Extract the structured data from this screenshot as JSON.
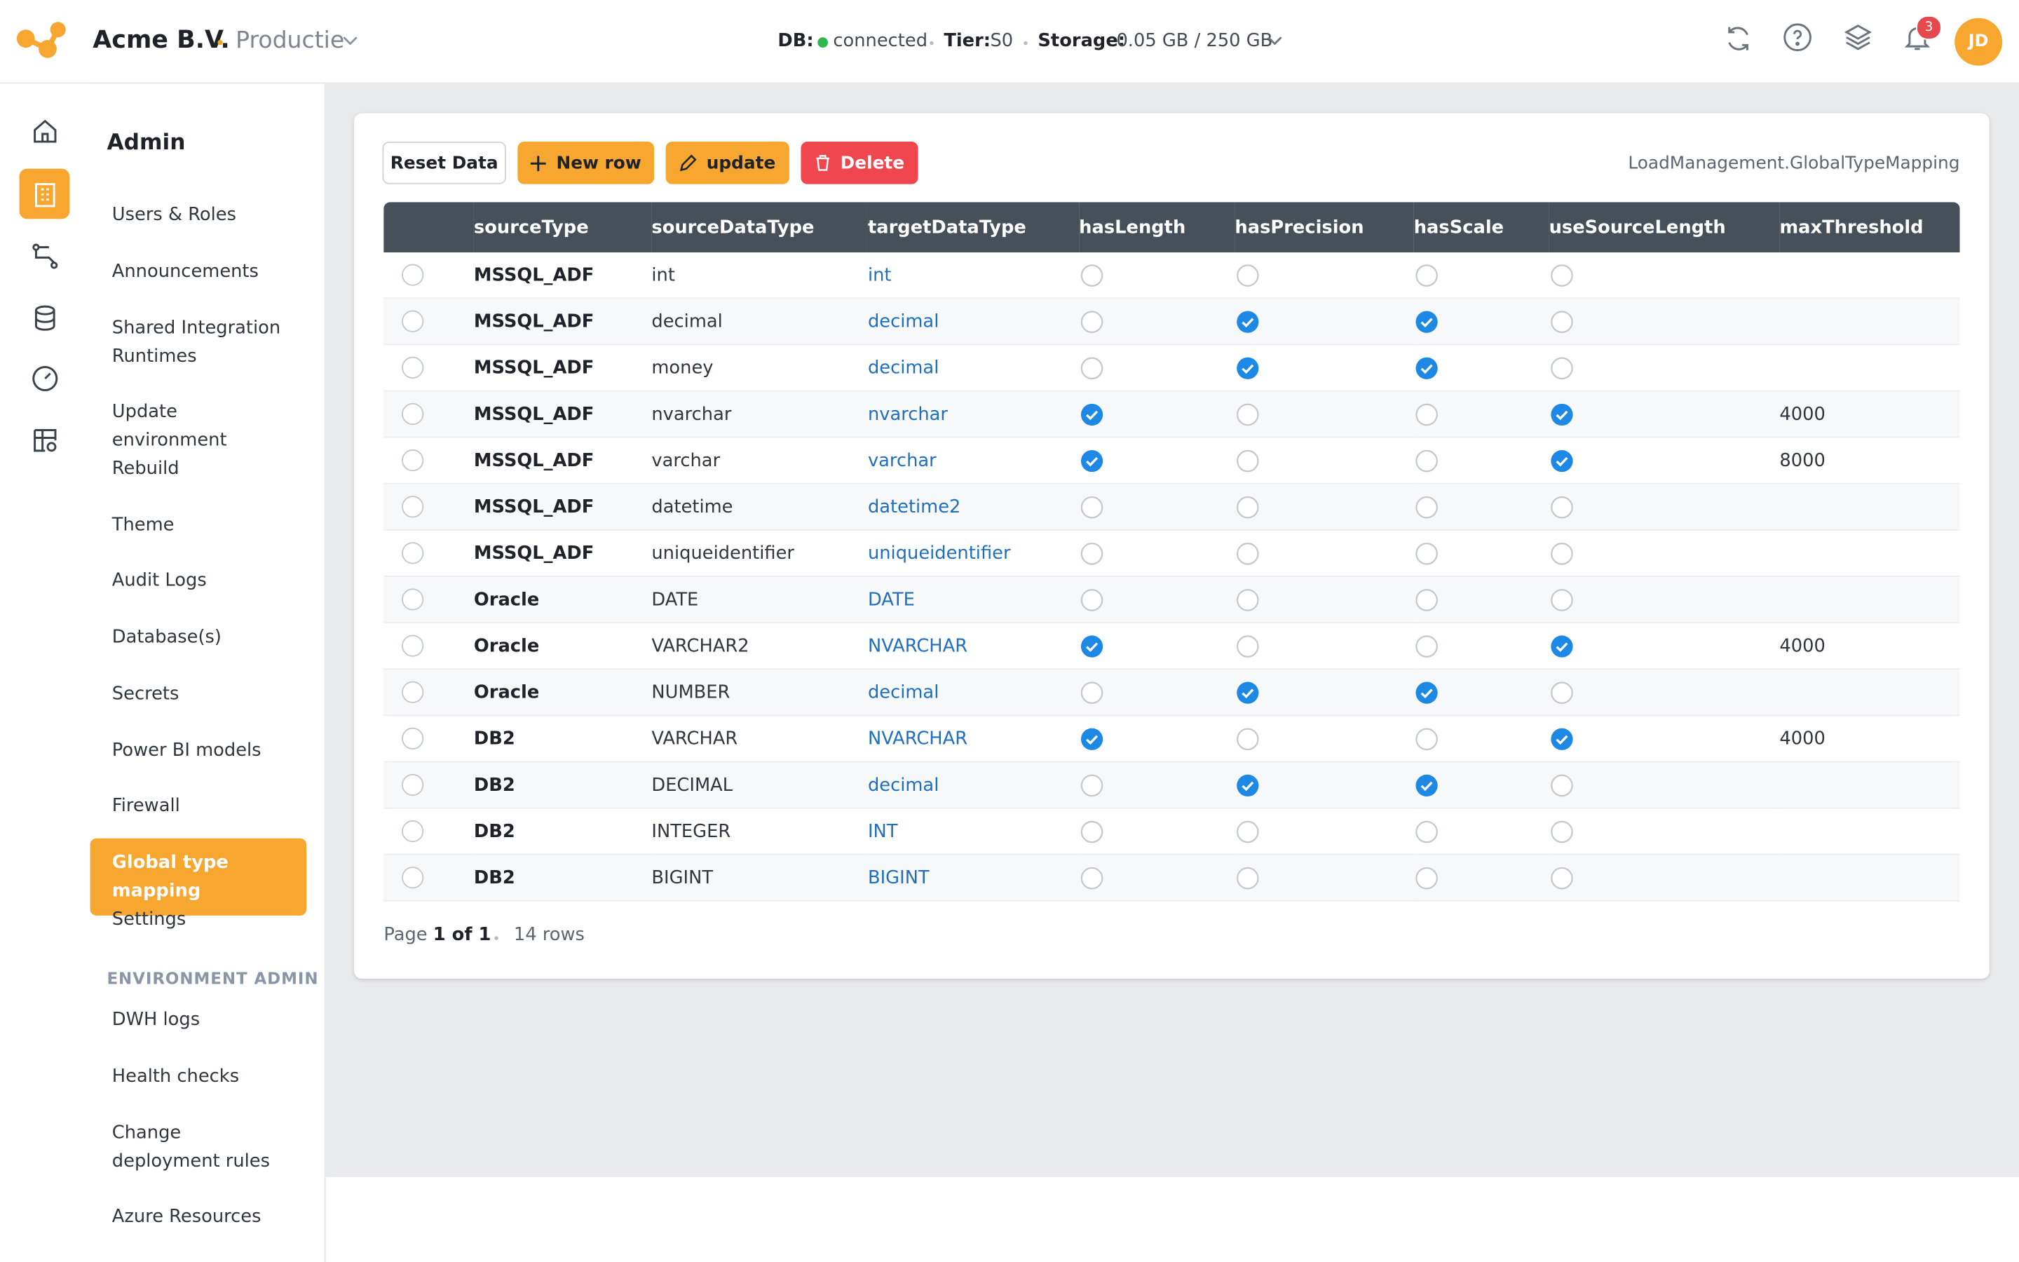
{
  "header": {
    "brand": "Acme B.V.",
    "environment": "Productie",
    "db_label": "DB:",
    "db_status": "connected",
    "tier_label": "Tier:",
    "tier_value": "S0",
    "storage_label": "Storage:",
    "storage_value": "0.05 GB / 250 GB",
    "notifications": 3,
    "avatar": "JD"
  },
  "sidebar": {
    "title": "Admin",
    "items": [
      "Users & Roles",
      "Announcements",
      "Shared Integration Runtimes",
      "Update environment",
      "Rebuild",
      "Theme",
      "Audit Logs",
      "Database(s)",
      "Secrets",
      "Power BI models",
      "Firewall",
      "Global type mapping",
      "Settings"
    ],
    "active_item": "Global type mapping",
    "section": "ENVIRONMENT ADMIN",
    "section_items": [
      "DWH logs",
      "Health checks",
      "Change deployment rules",
      "Azure Resources"
    ]
  },
  "toolbar": {
    "buttons": [
      "Reset Data",
      "New row",
      "update",
      "Delete"
    ],
    "table_name": "LoadManagement.GlobalTypeMapping"
  },
  "table": {
    "columns": [
      "sourceType",
      "sourceDataType",
      "targetDataType",
      "hasLength",
      "hasPrecision",
      "hasScale",
      "useSourceLength",
      "maxThreshold"
    ],
    "rows": [
      [
        "MSSQL_ADF",
        "int",
        "int",
        false,
        false,
        false,
        false,
        null
      ],
      [
        "MSSQL_ADF",
        "decimal",
        "decimal",
        false,
        true,
        true,
        false,
        null
      ],
      [
        "MSSQL_ADF",
        "money",
        "decimal",
        false,
        true,
        true,
        false,
        null
      ],
      [
        "MSSQL_ADF",
        "nvarchar",
        "nvarchar",
        true,
        false,
        false,
        true,
        4000
      ],
      [
        "MSSQL_ADF",
        "varchar",
        "varchar",
        true,
        false,
        false,
        true,
        8000
      ],
      [
        "MSSQL_ADF",
        "datetime",
        "datetime2",
        false,
        false,
        false,
        false,
        null
      ],
      [
        "MSSQL_ADF",
        "uniqueidentifier",
        "uniqueidentifier",
        false,
        false,
        false,
        false,
        null
      ],
      [
        "Oracle",
        "DATE",
        "DATE",
        false,
        false,
        false,
        false,
        null
      ],
      [
        "Oracle",
        "VARCHAR2",
        "NVARCHAR",
        true,
        false,
        false,
        true,
        4000
      ],
      [
        "Oracle",
        "NUMBER",
        "decimal",
        false,
        true,
        true,
        false,
        null
      ],
      [
        "DB2",
        "VARCHAR",
        "NVARCHAR",
        true,
        false,
        false,
        true,
        4000
      ],
      [
        "DB2",
        "DECIMAL",
        "decimal",
        false,
        true,
        true,
        false,
        null
      ],
      [
        "DB2",
        "INTEGER",
        "INT",
        false,
        false,
        false,
        false,
        null
      ],
      [
        "DB2",
        "BIGINT",
        "BIGINT",
        false,
        false,
        false,
        false,
        null
      ]
    ]
  },
  "footer": {
    "page_label": "Page",
    "page_value": "1 of 1",
    "row_count": "14 rows"
  }
}
